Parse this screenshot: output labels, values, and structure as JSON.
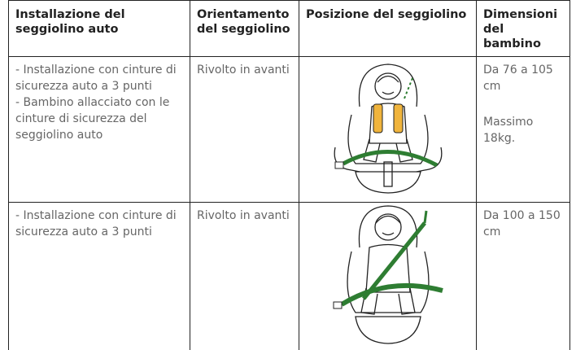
{
  "table": {
    "headers": [
      "Installazione del seggiolino auto",
      "Orientamento del seggiolino",
      "Posizione del seggiolino",
      "Dimensioni del bambino"
    ],
    "rows": [
      {
        "installation": [
          "- Installazione con cinture di sicurezza auto a 3 punti",
          "- Bambino allacciato con le cinture di sicurezza del seggiolino auto"
        ],
        "orientation": "Rivolto in avanti",
        "size": [
          "Da 76 a 105 cm",
          "Massimo 18kg."
        ]
      },
      {
        "installation": [
          "- Installazione con cinture di sicurezza auto a 3 punti"
        ],
        "orientation": "Rivolto in avanti",
        "size": [
          "Da 100 a 150 cm"
        ]
      }
    ]
  }
}
